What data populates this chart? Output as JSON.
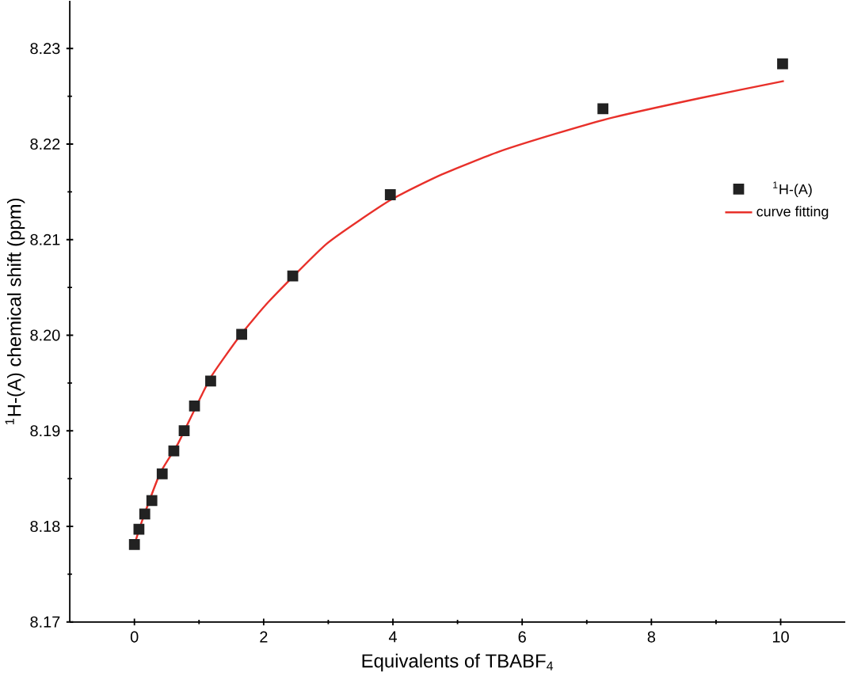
{
  "chart_data": {
    "type": "scatter",
    "xlabel": "Equivalents of TBABF$_{4}$",
    "ylabel": "$^{1}$H-(A) chemical shift (ppm)",
    "xlim": [
      -1,
      11
    ],
    "ylim": [
      8.17,
      8.235
    ],
    "xticks": [
      0,
      2,
      4,
      6,
      8,
      10
    ],
    "yticks": [
      8.17,
      8.18,
      8.19,
      {
        "value": 8.2,
        "label": "8.20"
      },
      8.21,
      8.22,
      8.23
    ],
    "legend": "right",
    "series": [
      {
        "name": "$^{1}$H-(A)",
        "marker": "square",
        "color": "#222222",
        "x": [
          0,
          0.07,
          0.16,
          0.27,
          0.43,
          0.61,
          0.77,
          0.93,
          1.18,
          1.66,
          2.45,
          3.96,
          7.25,
          10.03
        ],
        "values": [
          8.1781,
          8.1797,
          8.1813,
          8.1827,
          8.1855,
          8.1879,
          8.19,
          8.1926,
          8.1952,
          8.2001,
          8.2062,
          8.2147,
          8.2237,
          8.2284
        ]
      },
      {
        "name": "curve fitting",
        "type": "line",
        "marker": "none",
        "line_style": "solid",
        "color": "#e8302a",
        "x": [
          0,
          0.13,
          0.4,
          0.67,
          0.93,
          1.2,
          1.64,
          2.09,
          2.98,
          3.95,
          4.75,
          5.64,
          6.53,
          7.42,
          8.75,
          10.05
        ],
        "values": [
          8.1781,
          8.1808,
          8.1856,
          8.1886,
          8.1922,
          8.1958,
          8.2,
          8.2036,
          8.2096,
          8.2141,
          8.2168,
          8.2192,
          8.2211,
          8.2228,
          8.2248,
          8.2266
        ]
      }
    ]
  }
}
